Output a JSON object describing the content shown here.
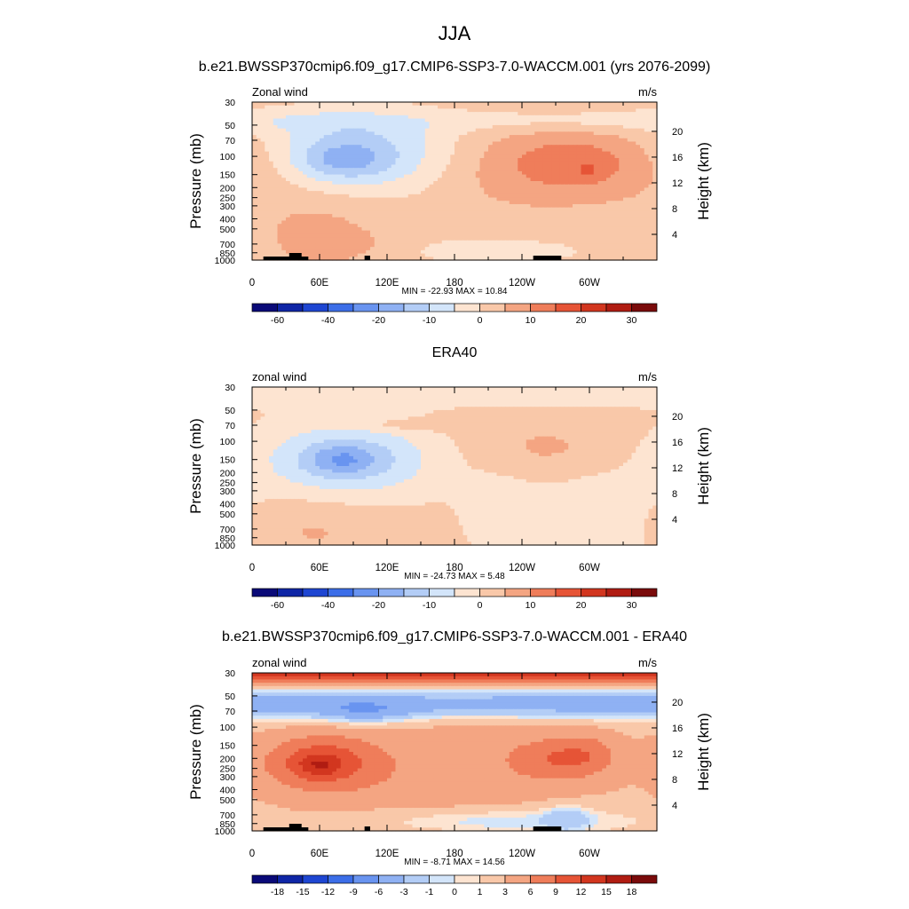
{
  "page": {
    "title": "JJA",
    "subtitle": "b.e21.BWSSP370cmip6.f09_g17.CMIP6-SSP3-7.0-WACCM.001 (yrs 2076-2099)"
  },
  "colors": {
    "scale": [
      "#0a0a78",
      "#0f26a6",
      "#1e46d2",
      "#3c6ee8",
      "#6994f0",
      "#8fb1f3",
      "#b3cdf6",
      "#d3e5fa",
      "#fde4d1",
      "#f9c8a9",
      "#f4a582",
      "#ef7d5a",
      "#e65436",
      "#d2361f",
      "#b01c12",
      "#7a0b0b"
    ]
  },
  "chart_data": [
    {
      "type": "heatmap",
      "id": "p1",
      "panel_title": "",
      "left_label": "Zonal wind",
      "units": "m/s",
      "ylabel": "Pressure (mb)",
      "y2label": "Height (km)",
      "stats": "MIN = -22.93  MAX =  10.84",
      "xticks": [
        "0",
        "60E",
        "120E",
        "180",
        "120W",
        "60W"
      ],
      "xtick_lon": [
        0,
        60,
        120,
        180,
        240,
        300
      ],
      "xlim": [
        0,
        360
      ],
      "ylim": [
        1000,
        30
      ],
      "yticks": [
        30,
        50,
        70,
        100,
        150,
        200,
        250,
        300,
        400,
        500,
        700,
        850,
        1000
      ],
      "y2ticks": [
        20,
        16,
        12,
        8,
        4
      ],
      "levels": [
        -70,
        -60,
        -50,
        -40,
        -30,
        -20,
        -15,
        -10,
        -5,
        0,
        5,
        10,
        15,
        20,
        25,
        30,
        35
      ],
      "colorbar_labels": [
        "-60",
        "-40",
        "-20",
        "-10",
        "0",
        "10",
        "20",
        "30"
      ],
      "background": 1.5,
      "blobs": [
        {
          "lon": 95,
          "p": 95,
          "dlon": 60,
          "dlogp": 0.28,
          "amp": -15
        },
        {
          "lon": 80,
          "p": 110,
          "dlon": 25,
          "dlogp": 0.12,
          "amp": -8
        },
        {
          "lon": 300,
          "p": 45,
          "dlon": 150,
          "dlogp": 0.08,
          "amp": -5
        },
        {
          "lon": 295,
          "p": 115,
          "dlon": 60,
          "dlogp": 0.22,
          "amp": 9
        },
        {
          "lon": 300,
          "p": 140,
          "dlon": 8,
          "dlogp": 0.06,
          "amp": 4
        },
        {
          "lon": 230,
          "p": 140,
          "dlon": 80,
          "dlogp": 0.35,
          "amp": 4
        },
        {
          "lon": 60,
          "p": 500,
          "dlon": 45,
          "dlogp": 0.4,
          "amp": 5
        },
        {
          "lon": 80,
          "p": 700,
          "dlon": 25,
          "dlogp": 0.08,
          "amp": 4
        },
        {
          "lon": 210,
          "p": 800,
          "dlon": 80,
          "dlogp": 0.12,
          "amp": -3
        },
        {
          "lon": 20,
          "p": 30,
          "dlon": 300,
          "dlogp": 0.1,
          "amp": 1
        }
      ],
      "topography": true
    },
    {
      "type": "heatmap",
      "id": "p2",
      "panel_title": "ERA40",
      "left_label": "zonal wind",
      "units": "m/s",
      "ylabel": "Pressure (mb)",
      "y2label": "Height (km)",
      "stats": "MIN = -24.73  MAX =   5.48",
      "xticks": [
        "0",
        "60E",
        "120E",
        "180",
        "120W",
        "60W"
      ],
      "xtick_lon": [
        0,
        60,
        120,
        180,
        240,
        300
      ],
      "xlim": [
        0,
        360
      ],
      "ylim": [
        1000,
        30
      ],
      "yticks": [
        30,
        50,
        70,
        100,
        150,
        200,
        250,
        300,
        400,
        500,
        700,
        850,
        1000
      ],
      "y2ticks": [
        20,
        16,
        12,
        8,
        4
      ],
      "levels": [
        -70,
        -60,
        -50,
        -40,
        -30,
        -20,
        -15,
        -10,
        -5,
        0,
        5,
        10,
        15,
        20,
        25,
        30,
        35
      ],
      "colorbar_labels": [
        "-60",
        "-40",
        "-20",
        "-10",
        "0",
        "10",
        "20",
        "30"
      ],
      "background": 1.5,
      "blobs": [
        {
          "lon": 0,
          "p": 34,
          "dlon": 900,
          "dlogp": 0.09,
          "amp": -5
        },
        {
          "lon": 85,
          "p": 150,
          "dlon": 55,
          "dlogp": 0.25,
          "amp": -14
        },
        {
          "lon": 80,
          "p": 150,
          "dlon": 22,
          "dlogp": 0.1,
          "amp": -9
        },
        {
          "lon": 300,
          "p": 650,
          "dlon": 40,
          "dlogp": 0.45,
          "amp": -5
        },
        {
          "lon": 220,
          "p": 450,
          "dlon": 25,
          "dlogp": 0.3,
          "amp": -4
        },
        {
          "lon": 265,
          "p": 120,
          "dlon": 50,
          "dlogp": 0.2,
          "amp": 5
        },
        {
          "lon": 55,
          "p": 700,
          "dlon": 40,
          "dlogp": 0.22,
          "amp": 4
        },
        {
          "lon": 140,
          "p": 70,
          "dlon": 35,
          "dlogp": 0.04,
          "amp": 4
        }
      ],
      "topography": false
    },
    {
      "type": "heatmap",
      "id": "p3",
      "panel_title": "b.e21.BWSSP370cmip6.f09_g17.CMIP6-SSP3-7.0-WACCM.001 - ERA40",
      "left_label": "zonal wind",
      "units": "m/s",
      "ylabel": "Pressure (mb)",
      "y2label": "Height (km)",
      "stats": "MIN =  -8.71  MAX =  14.56",
      "xticks": [
        "0",
        "60E",
        "120E",
        "180",
        "120W",
        "60W"
      ],
      "xtick_lon": [
        0,
        60,
        120,
        180,
        240,
        300
      ],
      "xlim": [
        0,
        360
      ],
      "ylim": [
        1000,
        30
      ],
      "yticks": [
        30,
        50,
        70,
        100,
        150,
        200,
        250,
        300,
        400,
        500,
        700,
        850,
        1000
      ],
      "y2ticks": [
        20,
        16,
        12,
        8,
        4
      ],
      "levels": [
        -21,
        -18,
        -15,
        -12,
        -9,
        -6,
        -3,
        -1,
        0,
        1,
        3,
        6,
        9,
        12,
        15,
        18,
        21
      ],
      "colorbar_labels": [
        "-18",
        "-15",
        "-12",
        "-9",
        "-6",
        "-3",
        "-1",
        "0",
        "1",
        "3",
        "6",
        "9",
        "12",
        "15",
        "18"
      ],
      "background": 2,
      "blobs": [
        {
          "lon": 0,
          "p": 30,
          "dlon": 900,
          "dlogp": 0.07,
          "amp": 12
        },
        {
          "lon": 0,
          "p": 60,
          "dlon": 900,
          "dlogp": 0.1,
          "amp": -7
        },
        {
          "lon": 100,
          "p": 75,
          "dlon": 30,
          "dlogp": 0.08,
          "amp": -4
        },
        {
          "lon": 60,
          "p": 220,
          "dlon": 35,
          "dlogp": 0.18,
          "amp": 8
        },
        {
          "lon": 60,
          "p": 230,
          "dlon": 12,
          "dlogp": 0.07,
          "amp": 4
        },
        {
          "lon": 270,
          "p": 200,
          "dlon": 30,
          "dlogp": 0.15,
          "amp": 5
        },
        {
          "lon": 300,
          "p": 180,
          "dlon": 20,
          "dlogp": 0.15,
          "amp": 3
        },
        {
          "lon": 160,
          "p": 300,
          "dlon": 100,
          "dlogp": 0.45,
          "amp": 3
        },
        {
          "lon": 210,
          "p": 800,
          "dlon": 90,
          "dlogp": 0.1,
          "amp": -4
        },
        {
          "lon": 280,
          "p": 750,
          "dlon": 15,
          "dlogp": 0.1,
          "amp": -3
        }
      ],
      "topography": true
    }
  ]
}
